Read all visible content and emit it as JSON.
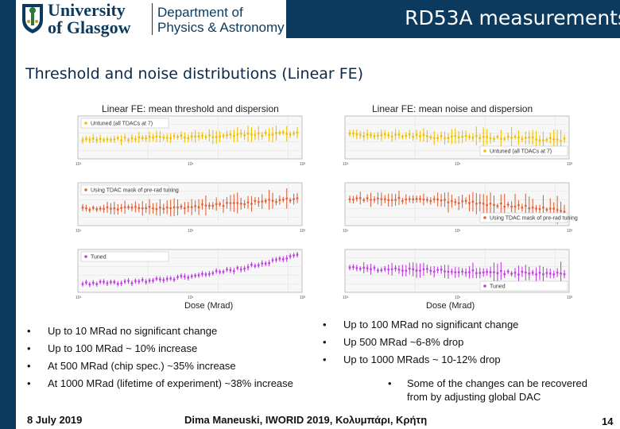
{
  "header": {
    "university_line1": "University",
    "university_line2": "of Glasgow",
    "department_line1": "Department of",
    "department_line2": "Physics & Astronomy",
    "slide_title": "RD53A measurements"
  },
  "section_title": "Threshold and noise distributions (Linear FE)",
  "colors": {
    "navy": "#0b3a5e",
    "untuned": "#f0c000",
    "tdac": "#e0643a",
    "tuned": "#c040e0"
  },
  "figures": {
    "left": {
      "title": "Linear FE: mean threshold and dispersion",
      "xlabel": "Dose (Mrad)"
    },
    "right": {
      "title": "Linear FE: mean noise and dispersion",
      "xlabel": "Dose (Mrad)"
    },
    "legend_untuned": "Untuned (all TDACs at 7)",
    "legend_untuned_right": "Untuned (all TDACs at 7)",
    "legend_tdac": "Using TDAC mask of pre-rad tuning",
    "legend_tuned": "Tuned"
  },
  "bullets_left": [
    "Up to 10 MRad no significant change",
    "Up to 100 MRad ~ 10% increase",
    "At 500 MRad (chip spec.) ~35% increase",
    "At 1000 MRad (lifetime of experiment) ~38% increase"
  ],
  "bullets_right": [
    "Up to 100 MRad no significant change",
    "Up 500 MRad ~6-8% drop",
    "Up to 1000 MRads ~ 10-12% drop"
  ],
  "note": "Some of the changes can be recovered from by adjusting global DAC",
  "footer": {
    "date": "8 July 2019",
    "center": "Dima Maneuski, IWORID 2019, Κολυμπάρι, Κρήτη",
    "page": "14"
  }
}
